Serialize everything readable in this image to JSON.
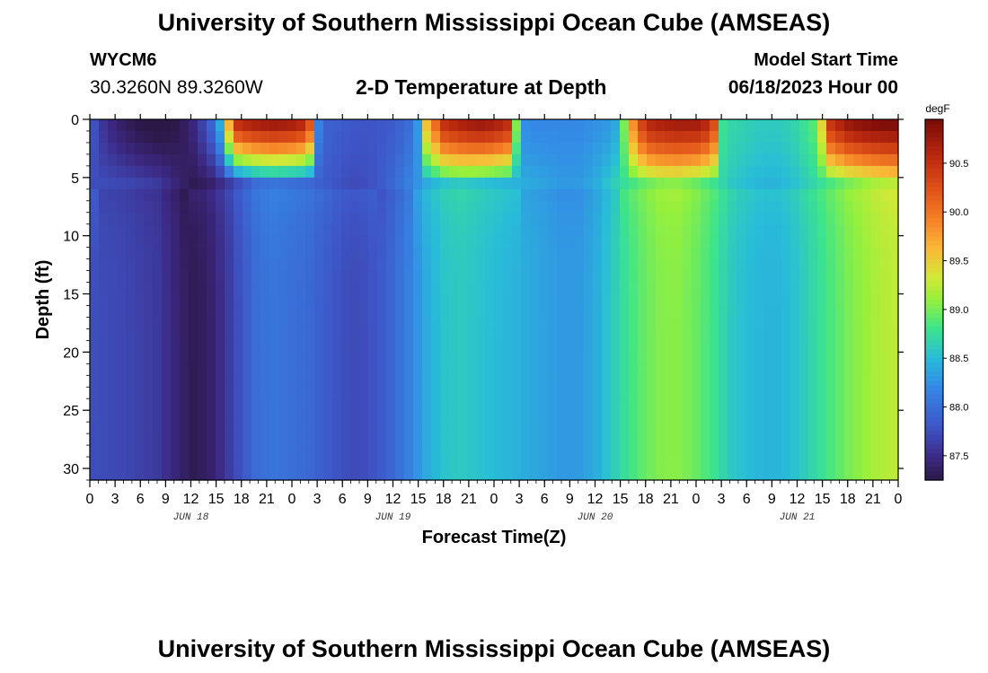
{
  "header": {
    "title_top": "University of Southern Mississippi Ocean Cube (AMSEAS)",
    "title_bottom": "University of Southern Mississippi Ocean Cube (AMSEAS)",
    "station_id": "WYCM6",
    "station_coords": "30.3260N  89.3260W",
    "model_start_label": "Model Start Time",
    "model_start_value": "06/18/2023 Hour 00"
  },
  "chart_data": {
    "type": "heatmap",
    "title": "2-D Temperature at Depth",
    "xlabel": "Forecast Time(Z)",
    "ylabel": "Depth (ft)",
    "colorbar_label": "degF",
    "x_range_hours": [
      0,
      96
    ],
    "x_tick_labels": [
      "0",
      "3",
      "6",
      "9",
      "12",
      "15",
      "18",
      "21",
      "0",
      "3",
      "6",
      "9",
      "12",
      "15",
      "18",
      "21",
      "0",
      "3",
      "6",
      "9",
      "12",
      "15",
      "18",
      "21",
      "0",
      "3",
      "6",
      "9",
      "12",
      "15",
      "18",
      "21",
      "0"
    ],
    "date_labels": [
      {
        "label": "JUN 18",
        "hour": 12
      },
      {
        "label": "JUN 19",
        "hour": 36
      },
      {
        "label": "JUN 20",
        "hour": 60
      },
      {
        "label": "JUN 21",
        "hour": 84
      }
    ],
    "y_range": [
      0,
      31
    ],
    "y_ticks": [
      0,
      5,
      10,
      15,
      20,
      25,
      30
    ],
    "color_range": [
      87.25,
      90.95
    ],
    "colorbar_ticks": [
      "87.5",
      "88.0",
      "88.5",
      "89.0",
      "89.5",
      "90.0",
      "90.5"
    ],
    "colorbar_tick_values": [
      87.5,
      88.0,
      88.5,
      89.0,
      89.5,
      90.0,
      90.5
    ],
    "deep_profile": {
      "hours": [
        0,
        4,
        8,
        10,
        12,
        14,
        16,
        18,
        20,
        22,
        24,
        26,
        28,
        30,
        32,
        34,
        36,
        38,
        40,
        42,
        44,
        46,
        48,
        50,
        52,
        54,
        56,
        58,
        60,
        62,
        64,
        66,
        68,
        70,
        72,
        74,
        76,
        78,
        80,
        82,
        84,
        86,
        88,
        90,
        92,
        94,
        96
      ],
      "values": [
        87.75,
        87.7,
        87.6,
        87.45,
        87.3,
        87.35,
        87.55,
        87.8,
        88.0,
        88.05,
        88.0,
        87.95,
        87.85,
        87.75,
        87.72,
        87.8,
        87.95,
        88.15,
        88.4,
        88.55,
        88.6,
        88.55,
        88.5,
        88.45,
        88.4,
        88.35,
        88.3,
        88.3,
        88.4,
        88.6,
        88.8,
        88.95,
        89.05,
        89.05,
        88.95,
        88.8,
        88.6,
        88.5,
        88.45,
        88.45,
        88.55,
        88.7,
        88.85,
        89.0,
        89.1,
        89.2,
        89.25
      ]
    },
    "surface_profile": {
      "hours": [
        0,
        1,
        2,
        4,
        6,
        8,
        10,
        12,
        14,
        15,
        16,
        17,
        18,
        20,
        22,
        24,
        26,
        27,
        28,
        30,
        32,
        34,
        36,
        38,
        39,
        40,
        42,
        44,
        46,
        48,
        50,
        51,
        52,
        54,
        56,
        58,
        60,
        62,
        63,
        64,
        66,
        68,
        70,
        72,
        74,
        75,
        76,
        78,
        80,
        82,
        84,
        86,
        87,
        88,
        90,
        92,
        94,
        96
      ],
      "values": [
        87.9,
        87.65,
        87.5,
        87.35,
        87.25,
        87.2,
        87.25,
        87.4,
        87.8,
        88.1,
        88.8,
        90.5,
        90.65,
        90.75,
        90.8,
        90.75,
        90.6,
        88.2,
        87.9,
        87.85,
        87.8,
        87.8,
        87.85,
        88.0,
        88.3,
        89.6,
        90.55,
        90.7,
        90.8,
        90.75,
        90.55,
        88.3,
        88.2,
        88.2,
        88.2,
        88.2,
        88.25,
        88.3,
        88.5,
        89.6,
        90.6,
        90.7,
        90.75,
        90.75,
        90.55,
        88.8,
        88.7,
        88.65,
        88.6,
        88.6,
        88.7,
        88.9,
        89.5,
        90.5,
        90.8,
        90.9,
        90.95,
        90.95
      ]
    },
    "mixed_layer_depth_ft": 5.5
  }
}
